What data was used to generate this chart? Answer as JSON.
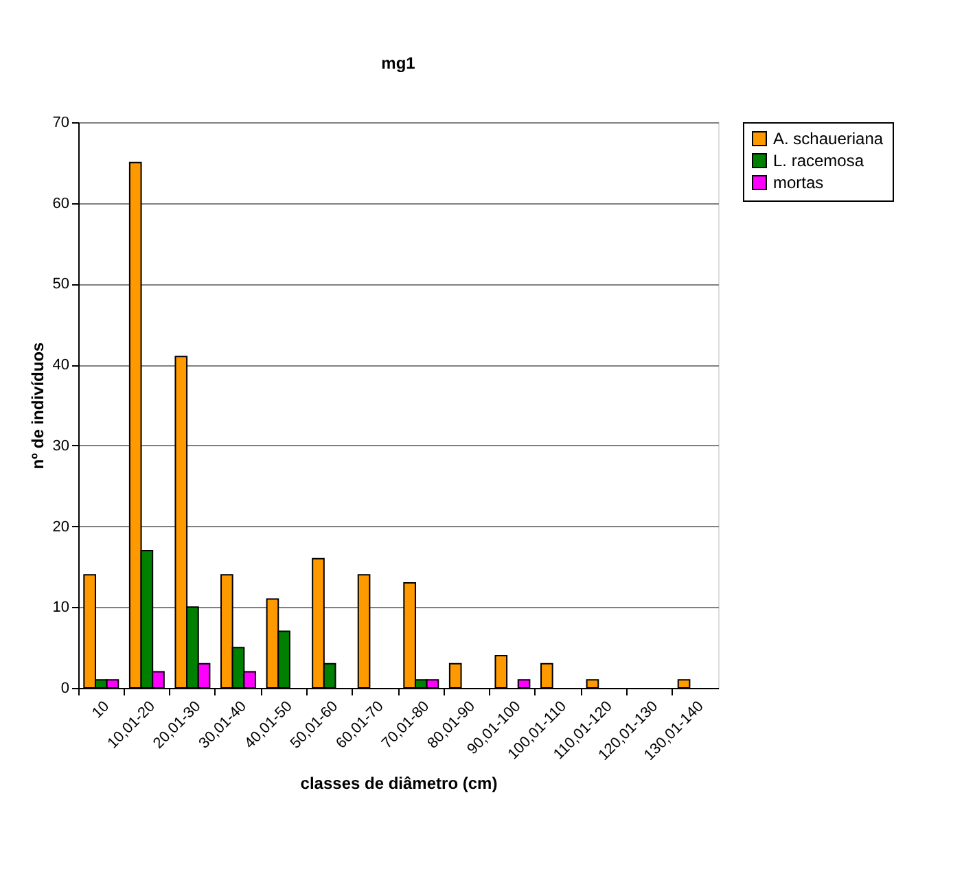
{
  "chart_data": {
    "type": "bar",
    "title": "mg1",
    "xlabel": "classes de diâmetro (cm)",
    "ylabel": "nº de indivíduos",
    "categories": [
      "10",
      "10,01-20",
      "20,01-30",
      "30,01-40",
      "40,01-50",
      "50,01-60",
      "60,01-70",
      "70,01-80",
      "80,01-90",
      "90,01-100",
      "100,01-110",
      "110,01-120",
      "120,01-130",
      "130,01-140"
    ],
    "series": [
      {
        "name": "A. schaueriana",
        "color": "#ff9900",
        "values": [
          14,
          65,
          41,
          14,
          11,
          16,
          14,
          13,
          3,
          4,
          3,
          1,
          null,
          1
        ]
      },
      {
        "name": "L. racemosa",
        "color": "#008000",
        "values": [
          1,
          17,
          10,
          5,
          7,
          3,
          null,
          1,
          null,
          null,
          null,
          null,
          null,
          null
        ]
      },
      {
        "name": "mortas",
        "color": "#ff00ff",
        "values": [
          1,
          2,
          3,
          2,
          null,
          null,
          null,
          1,
          null,
          1,
          null,
          null,
          null,
          null
        ]
      }
    ],
    "ylim": [
      0,
      70
    ],
    "yticks": [
      0,
      10,
      20,
      30,
      40,
      50,
      60,
      70
    ],
    "grid": "y",
    "legend": "right"
  }
}
